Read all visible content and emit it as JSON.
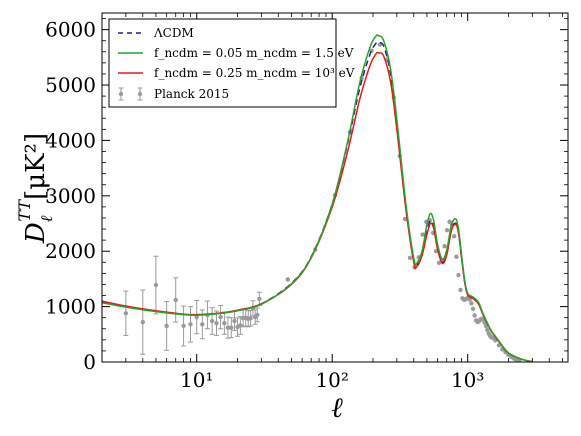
{
  "chart_data": {
    "type": "line",
    "title": "",
    "xlabel": "ℓ",
    "ylabel": "D",
    "ylabel_sub": "ℓ",
    "ylabel_sup": "TT",
    "ylabel_unit": "[μK²]",
    "x_scale": "log",
    "xlim": [
      2,
      5500
    ],
    "ylim": [
      0,
      6300
    ],
    "x_tick_labels": [
      "10¹",
      "10²",
      "10³"
    ],
    "x_tick_values": [
      10,
      100,
      1000
    ],
    "y_ticks": [
      0,
      1000,
      2000,
      3000,
      4000,
      5000,
      6000
    ],
    "grid": false,
    "legend_position": "top-left",
    "legend": [
      {
        "label": "ΛCDM",
        "style": "dashed",
        "color": "#1f1f8f"
      },
      {
        "label": "f_ncdm = 0.05  m_ncdm = 1.5 eV",
        "style": "solid",
        "color": "#2ca02c"
      },
      {
        "label": "f_ncdm = 0.25  m_ncdm = 10³ eV",
        "style": "solid",
        "color": "#e31a1c"
      },
      {
        "label": "Planck 2015",
        "style": "errorbar",
        "color": "#9a9a9a"
      }
    ],
    "series": [
      {
        "name": "ΛCDM",
        "color": "#1f1f8f",
        "style": "dashed",
        "x": [
          2,
          3,
          5,
          8,
          10,
          15,
          20,
          30,
          50,
          70,
          100,
          130,
          160,
          190,
          210,
          220,
          240,
          270,
          300,
          350,
          400,
          420,
          460,
          500,
          530,
          560,
          600,
          650,
          700,
          760,
          820,
          860,
          900,
          950,
          1000,
          1100,
          1200,
          1300,
          1400,
          1500,
          1700,
          2000,
          2500,
          3000
        ],
        "y": [
          1080,
          1000,
          920,
          860,
          850,
          880,
          930,
          1050,
          1420,
          1900,
          2850,
          3950,
          4950,
          5550,
          5750,
          5760,
          5700,
          5200,
          4300,
          2800,
          1850,
          1750,
          1950,
          2350,
          2550,
          2450,
          2050,
          1800,
          1950,
          2400,
          2500,
          2300,
          1900,
          1450,
          1220,
          1150,
          1060,
          850,
          690,
          550,
          370,
          160,
          50,
          5
        ]
      },
      {
        "name": "f_ncdm = 0.05  m_ncdm = 1.5 eV",
        "color": "#2ca02c",
        "style": "solid",
        "x": [
          2,
          3,
          5,
          8,
          10,
          15,
          20,
          30,
          50,
          70,
          100,
          130,
          160,
          190,
          210,
          220,
          240,
          270,
          300,
          350,
          400,
          420,
          460,
          500,
          530,
          560,
          600,
          650,
          700,
          760,
          820,
          860,
          900,
          950,
          1000,
          1100,
          1200,
          1300,
          1400,
          1500,
          1700,
          2000,
          2500,
          3000
        ],
        "y": [
          1070,
          990,
          910,
          855,
          845,
          875,
          925,
          1040,
          1410,
          1890,
          2850,
          3980,
          5050,
          5680,
          5880,
          5890,
          5800,
          5280,
          4380,
          2850,
          1870,
          1780,
          2000,
          2480,
          2680,
          2560,
          2120,
          1850,
          2020,
          2480,
          2580,
          2360,
          1950,
          1480,
          1240,
          1170,
          1080,
          870,
          700,
          560,
          380,
          165,
          50,
          5
        ]
      },
      {
        "name": "f_ncdm = 0.25  m_ncdm = 10³ eV",
        "color": "#e31a1c",
        "style": "solid",
        "x": [
          2,
          3,
          5,
          8,
          10,
          15,
          20,
          30,
          50,
          70,
          100,
          130,
          160,
          190,
          210,
          220,
          240,
          270,
          300,
          350,
          400,
          420,
          460,
          500,
          530,
          560,
          600,
          650,
          700,
          760,
          820,
          860,
          900,
          950,
          1000,
          1100,
          1200,
          1300,
          1400,
          1500,
          1700,
          2000,
          2500,
          3000
        ],
        "y": [
          1100,
          1010,
          925,
          865,
          855,
          885,
          935,
          1050,
          1400,
          1880,
          2800,
          3800,
          4750,
          5350,
          5560,
          5580,
          5520,
          5050,
          4200,
          2750,
          1800,
          1720,
          1920,
          2300,
          2500,
          2420,
          2030,
          1780,
          1930,
          2380,
          2480,
          2290,
          1890,
          1440,
          1210,
          1140,
          1050,
          850,
          690,
          550,
          370,
          160,
          50,
          5
        ]
      },
      {
        "name": "Planck 2015",
        "color": "#9a9a9a",
        "type": "errorbar",
        "x": [
          3,
          4,
          5,
          6,
          7,
          8,
          9,
          10,
          11,
          12,
          13,
          14,
          15,
          16,
          17,
          18,
          19,
          20,
          21,
          22,
          23,
          24,
          25,
          26,
          27,
          28,
          29,
          47,
          75,
          105,
          135,
          165,
          195,
          225,
          255,
          285,
          315,
          345,
          375,
          405,
          435,
          465,
          495,
          525,
          555,
          585,
          615,
          645,
          675,
          705,
          735,
          765,
          795,
          825,
          855,
          885,
          915,
          945,
          975,
          1005,
          1035,
          1065,
          1095,
          1125,
          1155,
          1185,
          1215,
          1245,
          1275,
          1305,
          1335,
          1365,
          1395,
          1425,
          1455,
          1485,
          1515,
          1545,
          1600,
          1700,
          1800,
          1900,
          2000,
          2100,
          2200,
          2300,
          2400
        ],
        "y": [
          880,
          720,
          1390,
          650,
          1120,
          650,
          680,
          810,
          680,
          850,
          740,
          700,
          810,
          700,
          620,
          620,
          740,
          630,
          660,
          790,
          800,
          780,
          790,
          970,
          810,
          850,
          1140,
          1490,
          2030,
          3010,
          4150,
          5130,
          5620,
          5730,
          5460,
          4770,
          3720,
          2580,
          1880,
          1710,
          1890,
          2300,
          2530,
          2560,
          2330,
          2000,
          1790,
          1840,
          2090,
          2380,
          2530,
          2480,
          2270,
          1900,
          1570,
          1300,
          1150,
          1120,
          1140,
          1160,
          1130,
          1060,
          960,
          840,
          750,
          720,
          740,
          770,
          780,
          760,
          710,
          650,
          580,
          520,
          480,
          450,
          440,
          430,
          390,
          300,
          230,
          180,
          130,
          90,
          60,
          40,
          25
        ],
        "err": [
          400,
          580,
          520,
          440,
          400,
          360,
          320,
          300,
          260,
          250,
          240,
          220,
          210,
          200,
          190,
          180,
          170,
          165,
          160,
          155,
          150,
          145,
          140,
          135,
          130,
          125,
          120,
          40,
          30,
          30,
          30,
          30,
          30,
          30,
          30,
          30,
          30,
          30,
          30,
          30,
          30,
          30,
          30,
          30,
          30,
          30,
          30,
          30,
          30,
          30,
          30,
          30,
          30,
          30,
          30,
          30,
          30,
          30,
          30,
          30,
          30,
          30,
          30,
          30,
          30,
          30,
          30,
          30,
          30,
          30,
          30,
          30,
          30,
          30,
          30,
          30,
          30,
          30,
          30,
          30,
          30,
          30,
          30,
          30,
          30,
          30,
          30
        ]
      }
    ]
  }
}
